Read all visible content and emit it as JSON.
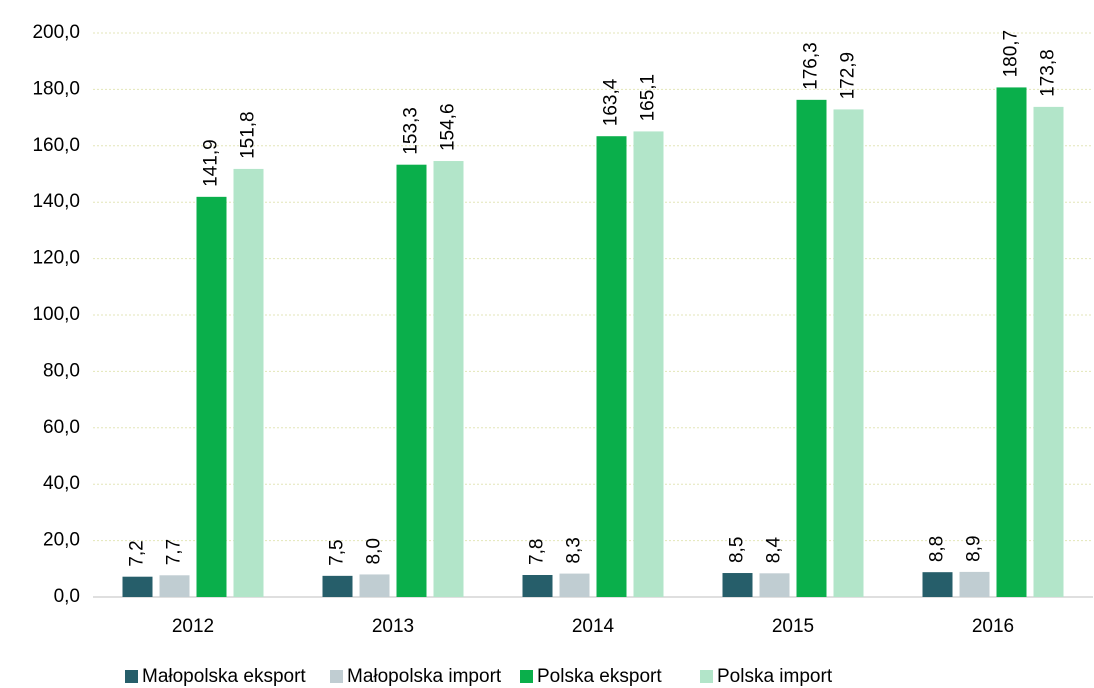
{
  "chart_data": {
    "type": "bar",
    "categories": [
      "2012",
      "2013",
      "2014",
      "2015",
      "2016"
    ],
    "series": [
      {
        "name": "Małopolska eksport",
        "color": "#265e6a",
        "values": [
          7.2,
          7.5,
          7.8,
          8.5,
          8.8
        ],
        "value_labels": [
          "7,2",
          "7,5",
          "7,8",
          "8,5",
          "8,8"
        ]
      },
      {
        "name": "Małopolska import",
        "color": "#c0cdd2",
        "values": [
          7.7,
          8.0,
          8.3,
          8.4,
          8.9
        ],
        "value_labels": [
          "7,7",
          "8,0",
          "8,3",
          "8,4",
          "8,9"
        ]
      },
      {
        "name": "Polska eksport",
        "color": "#0aaf4b",
        "values": [
          141.9,
          153.3,
          163.4,
          176.3,
          180.7
        ],
        "value_labels": [
          "141,9",
          "153,3",
          "163,4",
          "176,3",
          "180,7"
        ]
      },
      {
        "name": "Polska import",
        "color": "#b2e5c9",
        "values": [
          151.8,
          154.6,
          165.1,
          172.9,
          173.8
        ],
        "value_labels": [
          "151,8",
          "154,6",
          "165,1",
          "172,9",
          "173,8"
        ]
      }
    ],
    "ylim": [
      0,
      200
    ],
    "yticks": [
      {
        "value": 0,
        "label": "0,0"
      },
      {
        "value": 20,
        "label": "20,0"
      },
      {
        "value": 40,
        "label": "40,0"
      },
      {
        "value": 60,
        "label": "60,0"
      },
      {
        "value": 80,
        "label": "80,0"
      },
      {
        "value": 100,
        "label": "100,0"
      },
      {
        "value": 120,
        "label": "120,0"
      },
      {
        "value": 140,
        "label": "140,0"
      },
      {
        "value": 160,
        "label": "160,0"
      },
      {
        "value": 180,
        "label": "180,0"
      },
      {
        "value": 200,
        "label": "200,0"
      }
    ],
    "grid": true,
    "legend": "bottom"
  }
}
